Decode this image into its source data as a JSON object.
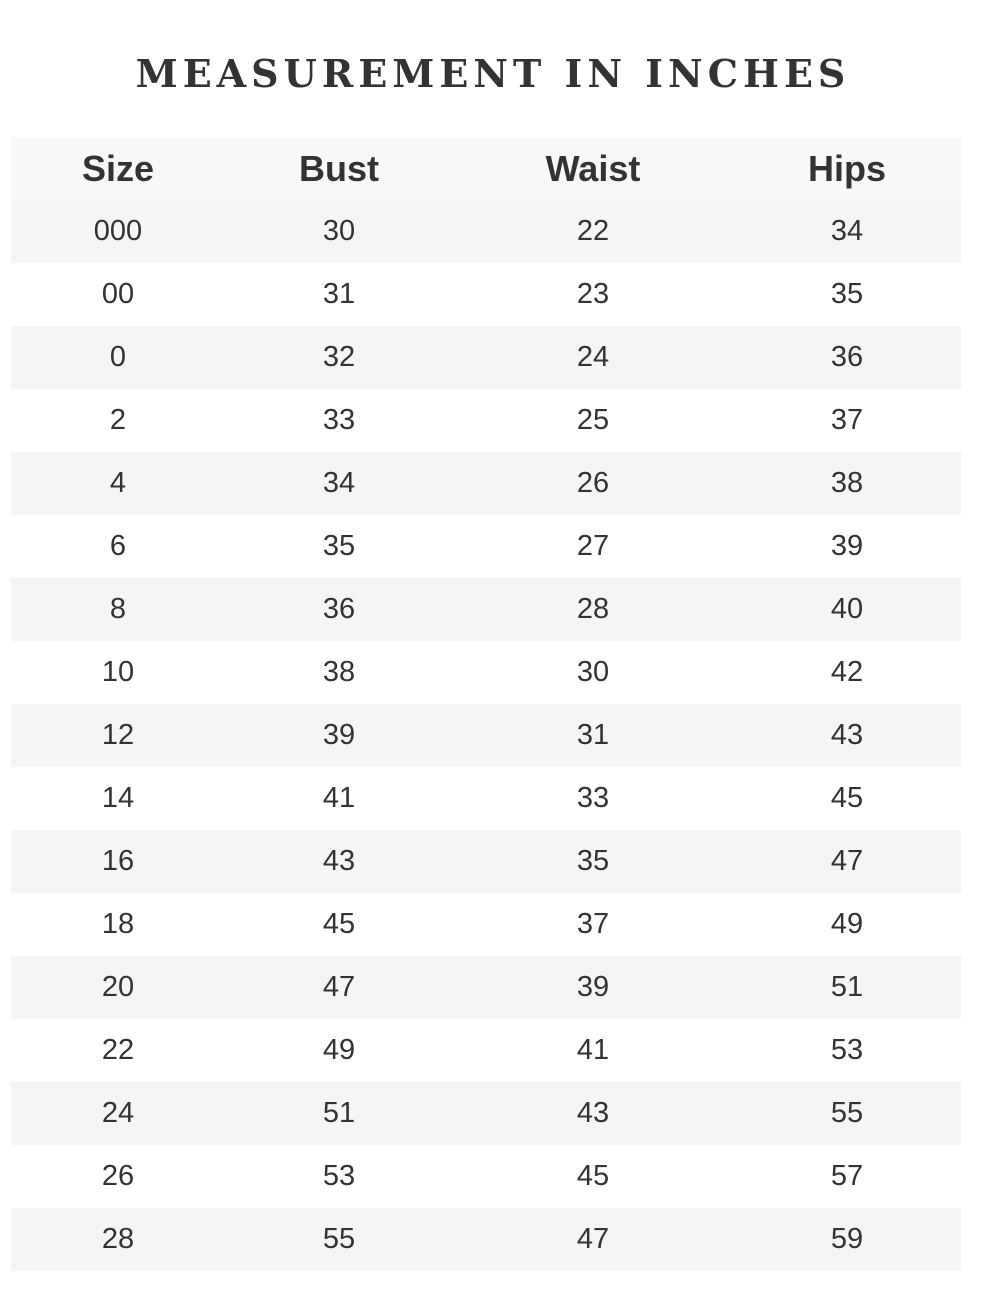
{
  "title": "MEASUREMENT IN INCHES",
  "headers": [
    "Size",
    "Bust",
    "Waist",
    "Hips"
  ],
  "rows": [
    [
      "000",
      "30",
      "22",
      "34"
    ],
    [
      "00",
      "31",
      "23",
      "35"
    ],
    [
      "0",
      "32",
      "24",
      "36"
    ],
    [
      "2",
      "33",
      "25",
      "37"
    ],
    [
      "4",
      "34",
      "26",
      "38"
    ],
    [
      "6",
      "35",
      "27",
      "39"
    ],
    [
      "8",
      "36",
      "28",
      "40"
    ],
    [
      "10",
      "38",
      "30",
      "42"
    ],
    [
      "12",
      "39",
      "31",
      "43"
    ],
    [
      "14",
      "41",
      "33",
      "45"
    ],
    [
      "16",
      "43",
      "35",
      "47"
    ],
    [
      "18",
      "45",
      "37",
      "49"
    ],
    [
      "20",
      "47",
      "39",
      "51"
    ],
    [
      "22",
      "49",
      "41",
      "53"
    ],
    [
      "24",
      "51",
      "43",
      "55"
    ],
    [
      "26",
      "53",
      "45",
      "57"
    ],
    [
      "28",
      "55",
      "47",
      "59"
    ]
  ]
}
